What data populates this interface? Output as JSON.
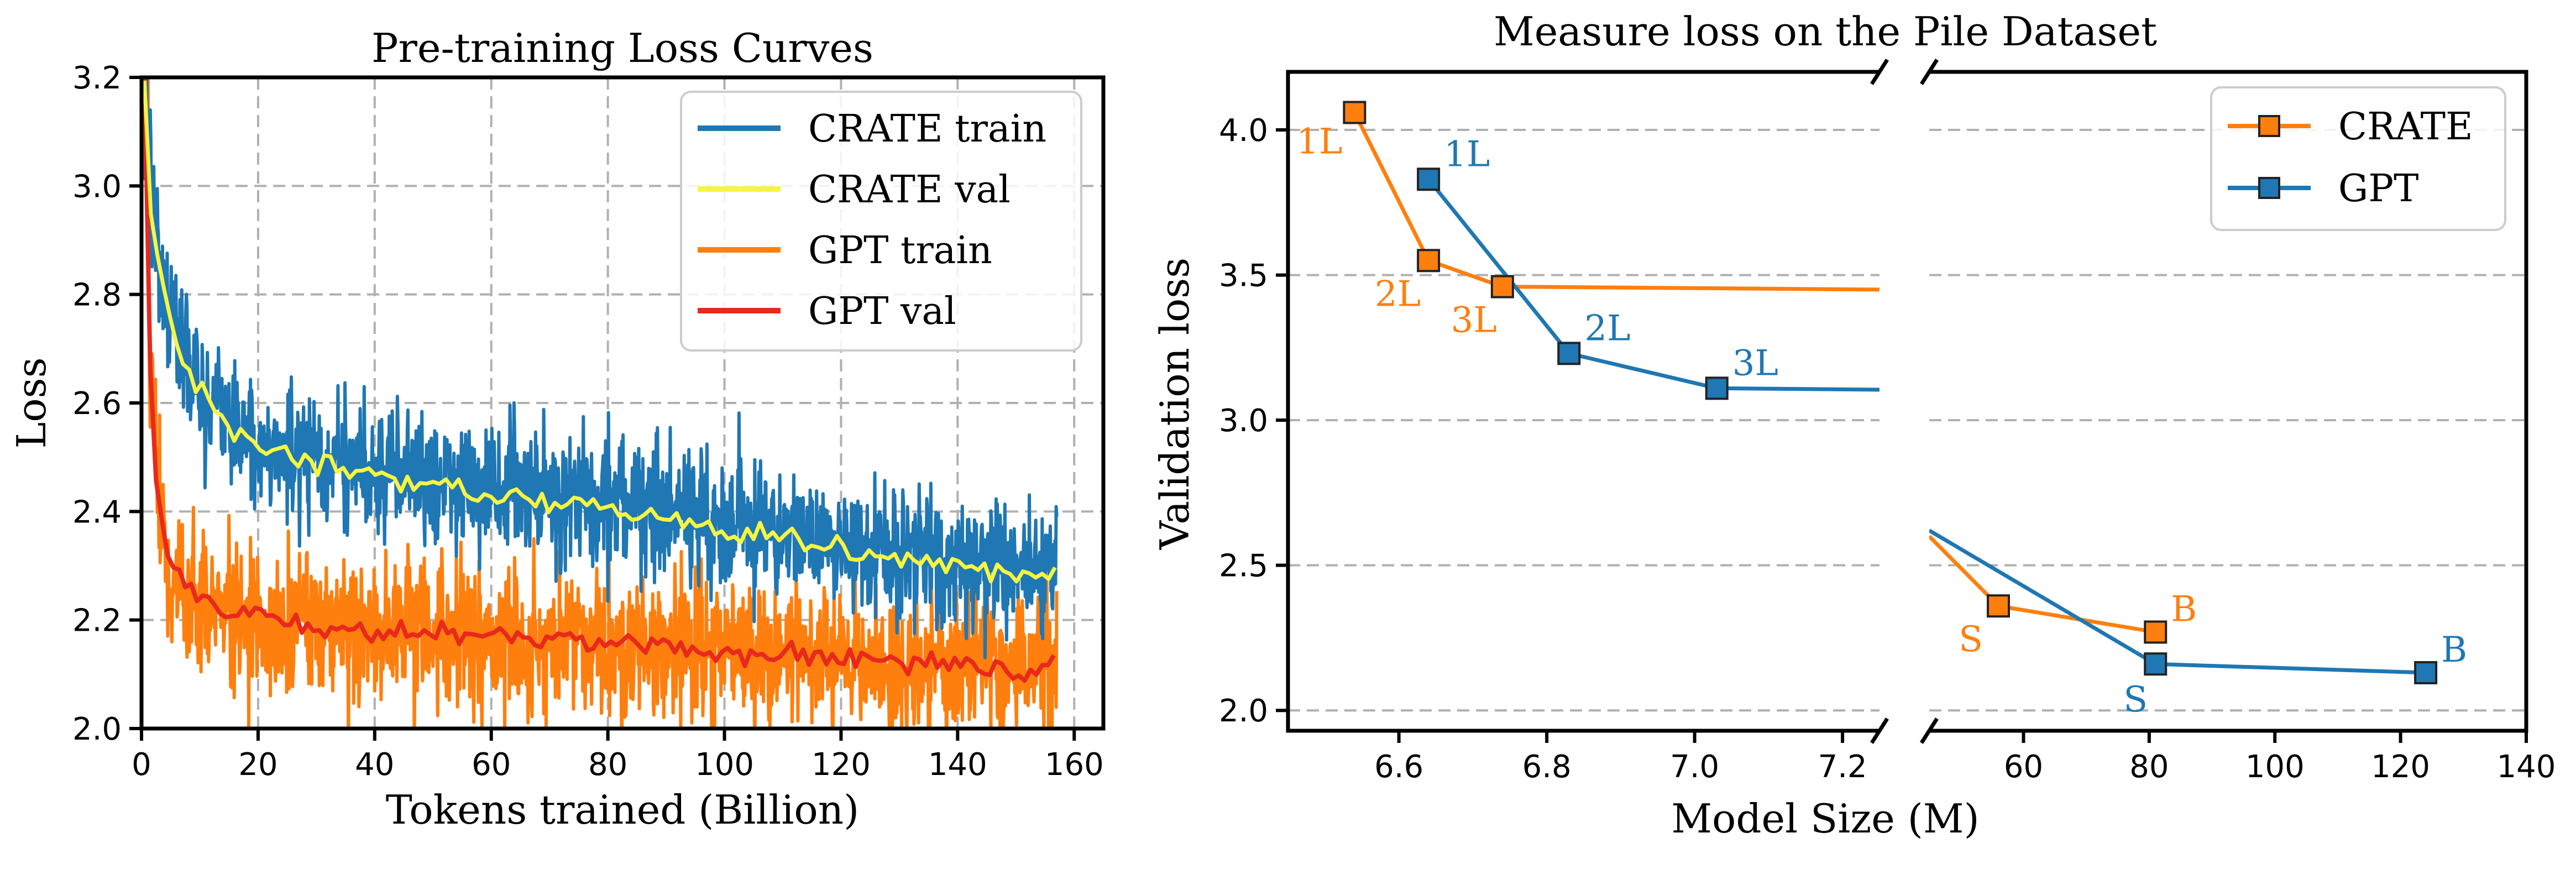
{
  "colors": {
    "crate_train": "#1f77b4",
    "crate_val": "#f5f542",
    "gpt_train": "#ff7f0e",
    "gpt_val": "#e8291c",
    "crate": "#ff7f0e",
    "gpt": "#1f77b4"
  },
  "chart_data": [
    {
      "type": "line",
      "title": "Pre-training Loss Curves",
      "xlabel": "Tokens trained (Billion)",
      "ylabel": "Loss",
      "xlim": [
        0,
        165
      ],
      "ylim": [
        2.0,
        3.2
      ],
      "xticks": [
        "0",
        "20",
        "40",
        "60",
        "80",
        "100",
        "120",
        "140",
        "160"
      ],
      "yticks": [
        "2.0",
        "2.2",
        "2.4",
        "2.6",
        "2.8",
        "3.0",
        "3.2"
      ],
      "grid": true,
      "legend_position": "top-right",
      "series": [
        {
          "name": "CRATE train",
          "color": "#1f77b4",
          "x": [
            0.5,
            1,
            2,
            3,
            5,
            8,
            12,
            16,
            20,
            25,
            30,
            40,
            50,
            60,
            70,
            80,
            90,
            100,
            110,
            120,
            130,
            140,
            150,
            157
          ],
          "y": [
            3.2,
            3.05,
            2.95,
            2.85,
            2.76,
            2.68,
            2.6,
            2.56,
            2.53,
            2.51,
            2.5,
            2.48,
            2.46,
            2.44,
            2.43,
            2.42,
            2.4,
            2.38,
            2.36,
            2.34,
            2.32,
            2.31,
            2.29,
            2.28
          ],
          "noise": 0.09
        },
        {
          "name": "CRATE val",
          "color": "#f5f542",
          "x": [
            0.5,
            1,
            2,
            3,
            5,
            8,
            12,
            16,
            20,
            25,
            30,
            40,
            50,
            60,
            70,
            80,
            90,
            100,
            110,
            120,
            130,
            140,
            150,
            157
          ],
          "y": [
            3.2,
            3.05,
            2.93,
            2.84,
            2.75,
            2.67,
            2.59,
            2.55,
            2.52,
            2.5,
            2.49,
            2.47,
            2.45,
            2.43,
            2.42,
            2.41,
            2.39,
            2.37,
            2.35,
            2.33,
            2.31,
            2.3,
            2.28,
            2.29
          ],
          "noise": 0.018
        },
        {
          "name": "GPT train",
          "color": "#ff7f0e",
          "x": [
            0.5,
            1,
            1.5,
            2,
            3,
            4,
            6,
            8,
            10,
            15,
            20,
            30,
            40,
            60,
            80,
            100,
            120,
            140,
            150,
            157
          ],
          "y": [
            3.2,
            2.9,
            2.7,
            2.55,
            2.4,
            2.33,
            2.28,
            2.25,
            2.23,
            2.21,
            2.2,
            2.19,
            2.18,
            2.17,
            2.16,
            2.15,
            2.13,
            2.12,
            2.11,
            2.1
          ],
          "noise": 0.1
        },
        {
          "name": "GPT val",
          "color": "#e8291c",
          "x": [
            0.5,
            1,
            1.5,
            2,
            3,
            4,
            6,
            8,
            10,
            15,
            20,
            30,
            40,
            60,
            80,
            100,
            120,
            140,
            150,
            153,
            157
          ],
          "y": [
            3.2,
            2.85,
            2.65,
            2.52,
            2.39,
            2.33,
            2.29,
            2.26,
            2.24,
            2.22,
            2.21,
            2.19,
            2.18,
            2.17,
            2.16,
            2.14,
            2.13,
            2.12,
            2.1,
            2.1,
            2.14
          ],
          "noise": 0.018
        }
      ]
    },
    {
      "type": "line",
      "title": "Measure loss on the Pile Dataset",
      "xlabel": "Model Size (M)",
      "ylabel": "Validation loss",
      "ylim": [
        1.93,
        4.2
      ],
      "yticks": [
        "2.0",
        "2.5",
        "3.0",
        "3.5",
        "4.0"
      ],
      "broken_x_axis": true,
      "left_xlim": [
        6.45,
        7.25
      ],
      "left_xticks": [
        "6.6",
        "6.8",
        "7.0",
        "7.2"
      ],
      "right_xlim": [
        45,
        140
      ],
      "right_xticks": [
        "60",
        "80",
        "100",
        "120",
        "140"
      ],
      "grid": "y",
      "legend_position": "top-right",
      "series": [
        {
          "name": "CRATE",
          "color": "#ff7f0e",
          "marker": "square",
          "left_points": [
            {
              "x": 6.54,
              "y": 4.06,
              "label": "1L"
            },
            {
              "x": 6.64,
              "y": 3.55,
              "label": "2L"
            },
            {
              "x": 6.74,
              "y": 3.46,
              "label": "3L"
            }
          ],
          "left_tail": {
            "x": 7.25,
            "y": 3.45
          },
          "right_head": {
            "x": 45,
            "y": 2.6
          },
          "right_points": [
            {
              "x": 56,
              "y": 2.36,
              "label": "S"
            },
            {
              "x": 81,
              "y": 2.27,
              "label": "B"
            }
          ]
        },
        {
          "name": "GPT",
          "color": "#1f77b4",
          "marker": "square",
          "left_points": [
            {
              "x": 6.64,
              "y": 3.83,
              "label": "1L"
            },
            {
              "x": 6.83,
              "y": 3.23,
              "label": "2L"
            },
            {
              "x": 7.03,
              "y": 3.11,
              "label": "3L"
            }
          ],
          "left_tail": {
            "x": 7.25,
            "y": 3.105
          },
          "right_head": {
            "x": 45,
            "y": 2.62
          },
          "right_points": [
            {
              "x": 81,
              "y": 2.16,
              "label": "S"
            },
            {
              "x": 124,
              "y": 2.13,
              "label": "B"
            }
          ]
        }
      ]
    }
  ]
}
